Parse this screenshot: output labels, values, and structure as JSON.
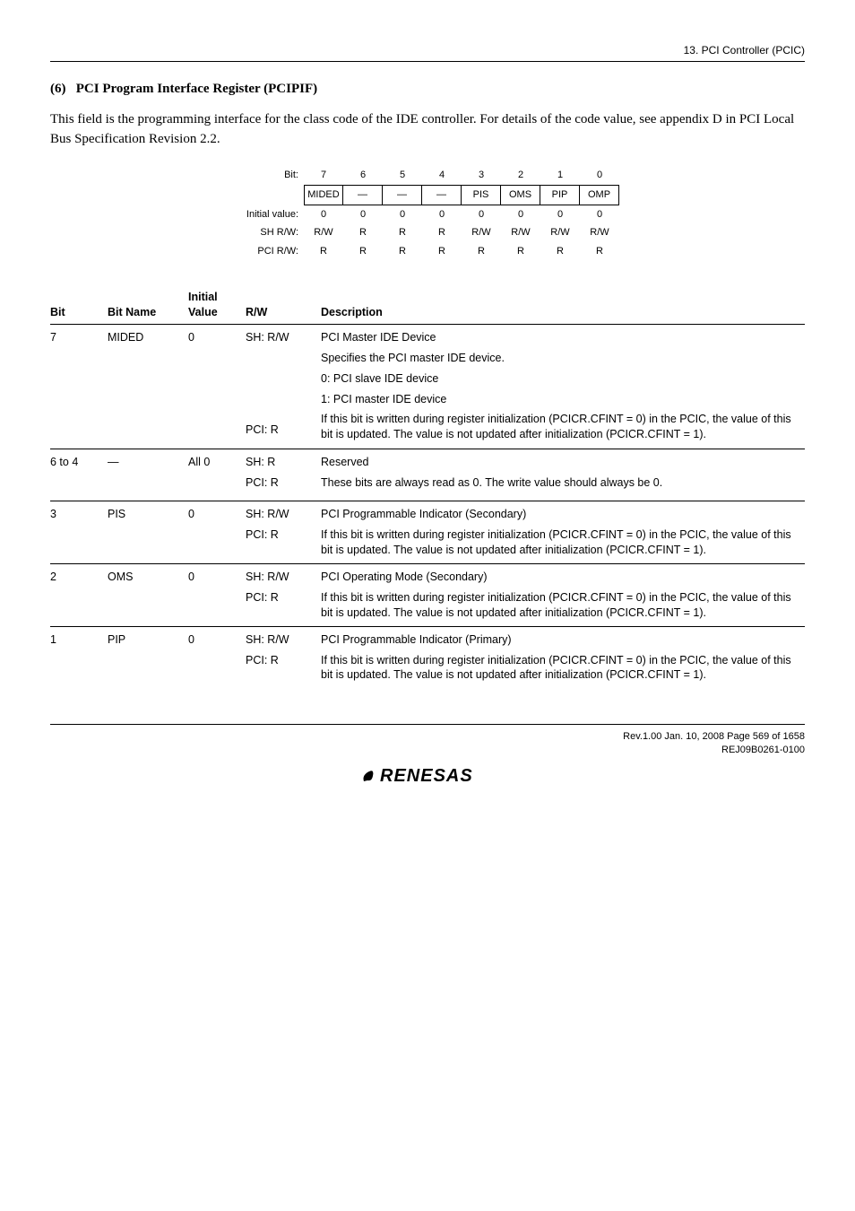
{
  "header": {
    "section": "13.   PCI Controller (PCIC)"
  },
  "heading": {
    "number": "(6)",
    "title": "PCI Program Interface Register (PCIPIF)"
  },
  "intro": "This field is the programming interface for the class code of the IDE controller. For details of the code value, see appendix D in PCI Local Bus Specification Revision 2.2.",
  "bitdiag": {
    "label_bit": "Bit:",
    "bits": [
      "7",
      "6",
      "5",
      "4",
      "3",
      "2",
      "1",
      "0"
    ],
    "names": [
      "MIDED",
      "—",
      "—",
      "—",
      "PIS",
      "OMS",
      "PIP",
      "OMP"
    ],
    "label_init": "Initial value:",
    "init": [
      "0",
      "0",
      "0",
      "0",
      "0",
      "0",
      "0",
      "0"
    ],
    "label_sh": "SH R/W:",
    "sh": [
      "R/W",
      "R",
      "R",
      "R",
      "R/W",
      "R/W",
      "R/W",
      "R/W"
    ],
    "label_pci": "PCI R/W:",
    "pci": [
      "R",
      "R",
      "R",
      "R",
      "R",
      "R",
      "R",
      "R"
    ]
  },
  "table": {
    "headers": {
      "bit": "Bit",
      "name": "Bit Name",
      "init_l1": "Initial",
      "init_l2": "Value",
      "rw": "R/W",
      "desc": "Description"
    },
    "rows": [
      {
        "bit": "7",
        "name": "MIDED",
        "init": "0",
        "rw": [
          {
            "label": "SH: R/W",
            "desc": [
              "PCI Master IDE Device",
              "Specifies the PCI master IDE device.",
              "0: PCI slave IDE device",
              "1: PCI master IDE device",
              "If this bit is written during register initialization (PCICR.CFINT = 0) in the PCIC, the value of this bit is updated. The value is not updated after initialization (PCICR.CFINT = 1)."
            ]
          },
          {
            "label": "PCI: R",
            "desc": []
          }
        ]
      },
      {
        "bit": "6 to 4",
        "name": "—",
        "init": "All 0",
        "rw": [
          {
            "label": "SH: R",
            "desc": [
              "Reserved"
            ]
          },
          {
            "label": "PCI: R",
            "desc": [
              "These bits are always read as 0. The write value should always be 0."
            ]
          }
        ]
      },
      {
        "bit": "3",
        "name": "PIS",
        "init": "0",
        "rw": [
          {
            "label": "SH: R/W",
            "desc": [
              "PCI Programmable Indicator (Secondary)"
            ]
          },
          {
            "label": "PCI: R",
            "desc": [
              "If this bit is written during register initialization (PCICR.CFINT = 0) in the PCIC, the value of this bit is updated. The value is not updated after initialization (PCICR.CFINT = 1)."
            ]
          }
        ]
      },
      {
        "bit": "2",
        "name": "OMS",
        "init": "0",
        "rw": [
          {
            "label": "SH: R/W",
            "desc": [
              "PCI Operating Mode (Secondary)"
            ]
          },
          {
            "label": "PCI: R",
            "desc": [
              "If this bit is written during register initialization (PCICR.CFINT = 0) in the PCIC, the value of this bit is updated. The value is not updated after initialization (PCICR.CFINT = 1)."
            ]
          }
        ]
      },
      {
        "bit": "1",
        "name": "PIP",
        "init": "0",
        "rw": [
          {
            "label": "SH: R/W",
            "desc": [
              "PCI Programmable Indicator (Primary)"
            ]
          },
          {
            "label": "PCI: R",
            "desc": [
              "If this bit is written during register initialization (PCICR.CFINT = 0) in the PCIC, the value of this bit is updated. The value is not updated after initialization (PCICR.CFINT = 1)."
            ]
          }
        ]
      }
    ]
  },
  "footer": {
    "line1": "Rev.1.00  Jan. 10, 2008  Page 569 of 1658",
    "line2": "REJ09B0261-0100",
    "logo": "RENESAS"
  }
}
